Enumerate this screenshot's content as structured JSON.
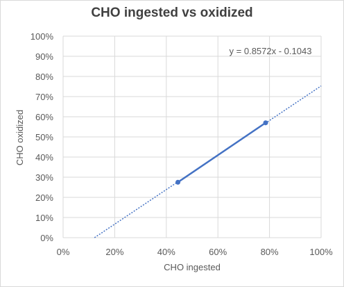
{
  "chart_data": {
    "type": "scatter",
    "title": "CHO ingested vs oxidized",
    "xlabel": "CHO ingested",
    "ylabel": "CHO oxidized",
    "xlim": [
      0,
      1
    ],
    "ylim": [
      0,
      1
    ],
    "x_ticks": [
      "0%",
      "20%",
      "40%",
      "60%",
      "80%",
      "100%"
    ],
    "y_ticks": [
      "0%",
      "10%",
      "20%",
      "30%",
      "40%",
      "50%",
      "60%",
      "70%",
      "80%",
      "90%",
      "100%"
    ],
    "grid": "vertical and horizontal major gridlines",
    "series": [
      {
        "points": [
          {
            "x": 0.445,
            "y": 0.275
          },
          {
            "x": 0.785,
            "y": 0.57
          }
        ]
      }
    ],
    "trendline": {
      "type": "linear",
      "slope": 0.8572,
      "intercept": -0.1043,
      "equation": "y = 0.8572x - 0.1043"
    },
    "colors": {
      "series": "#4472c4",
      "gridline": "#d9d9d9",
      "text": "#595959",
      "title": "#404040"
    }
  }
}
